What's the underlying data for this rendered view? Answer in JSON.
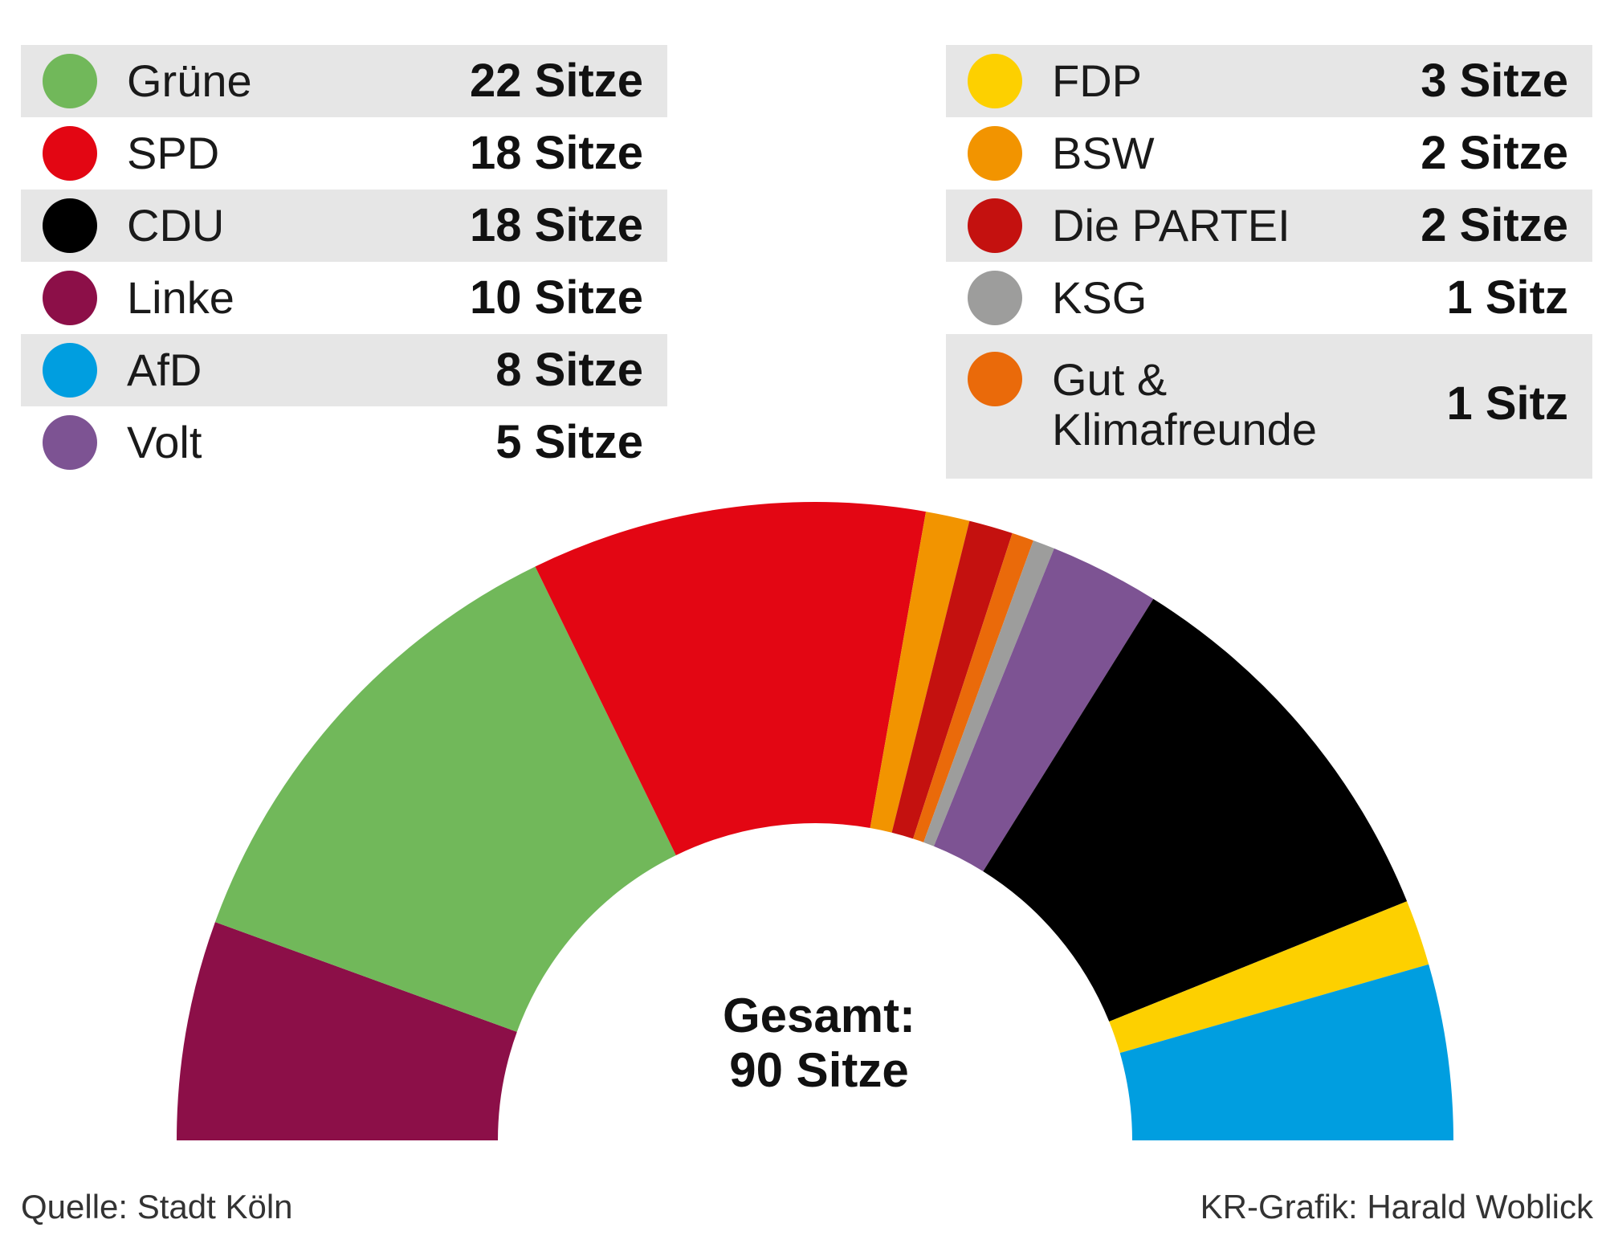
{
  "chart_data": {
    "type": "pie",
    "variant": "semicircle-parliament",
    "legend_left": [
      {
        "name": "Grüne",
        "seats": 22,
        "seats_label": "22 Sitze",
        "color": "#71b85a"
      },
      {
        "name": "SPD",
        "seats": 18,
        "seats_label": "18 Sitze",
        "color": "#e30613"
      },
      {
        "name": "CDU",
        "seats": 18,
        "seats_label": "18 Sitze",
        "color": "#000000"
      },
      {
        "name": "Linke",
        "seats": 10,
        "seats_label": "10 Sitze",
        "color": "#8c0f48"
      },
      {
        "name": "AfD",
        "seats": 8,
        "seats_label": "8 Sitze",
        "color": "#009ee0"
      },
      {
        "name": "Volt",
        "seats": 5,
        "seats_label": "5 Sitze",
        "color": "#7d5393"
      }
    ],
    "legend_right": [
      {
        "name": "FDP",
        "seats": 3,
        "seats_label": "3 Sitze",
        "color": "#fdd000"
      },
      {
        "name": "BSW",
        "seats": 2,
        "seats_label": "2 Sitze",
        "color": "#f29400"
      },
      {
        "name": "Die PARTEI",
        "seats": 2,
        "seats_label": "2 Sitze",
        "color": "#c4110f"
      },
      {
        "name": "KSG",
        "seats": 1,
        "seats_label": "1 Sitz",
        "color": "#9d9d9c"
      },
      {
        "name": "Gut &\nKlimafreunde",
        "seats": 1,
        "seats_label": "1 Sitz",
        "color": "#ea6a0a"
      }
    ],
    "arc_order": [
      "Linke",
      "Grüne",
      "SPD",
      "BSW",
      "Die PARTEI",
      "Gut &\nKlimafreunde",
      "KSG",
      "Volt",
      "CDU",
      "FDP",
      "AfD"
    ],
    "total_label": "Gesamt:",
    "total_value": "90 Sitze",
    "total_seats": 90
  },
  "footer": {
    "source": "Quelle: Stadt Köln",
    "credit": "KR-Grafik: Harald Woblick"
  }
}
